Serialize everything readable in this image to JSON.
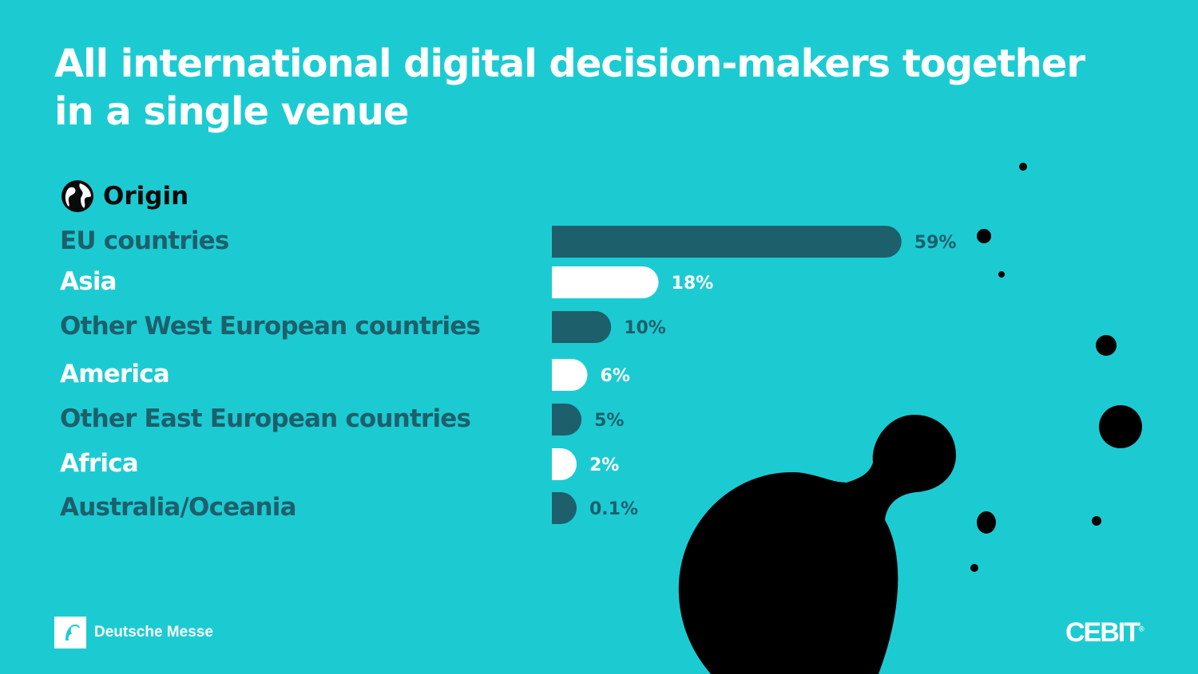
{
  "title": "All international digital decision-makers together in a single venue",
  "section": {
    "icon": "globe-icon",
    "label": "Origin"
  },
  "colors": {
    "background": "#1ccbd2",
    "dark_bar": "#1d5f6b",
    "light_bar": "#ffffff",
    "dark_text": "#0a0a0a"
  },
  "chart_data": {
    "type": "bar",
    "orientation": "horizontal",
    "categories": [
      "EU countries",
      "Asia",
      "Other West European countries",
      "America",
      "Other East European countries",
      "Africa",
      "Australia/Oceania"
    ],
    "values": [
      59,
      18,
      10,
      6,
      5,
      2,
      0.1
    ],
    "value_labels": [
      "59%",
      "18%",
      "10%",
      "6%",
      "5%",
      "2%",
      "0.1%"
    ],
    "unit": "%",
    "bar_colors": [
      "#1d5f6b",
      "#ffffff",
      "#1d5f6b",
      "#ffffff",
      "#1d5f6b",
      "#ffffff",
      "#1d5f6b"
    ]
  },
  "footer": {
    "left_brand": "Deutsche Messe",
    "right_brand": "CEBIT",
    "right_brand_mark": "®"
  }
}
